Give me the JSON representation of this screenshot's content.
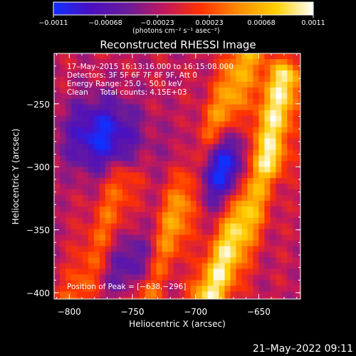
{
  "chart_data": {
    "type": "heatmap",
    "title": "Reconstructed RHESSI Image",
    "xlabel": "Heliocentric X (arcsec)",
    "ylabel": "Heliocentric Y (arcsec)",
    "xlim": [
      -812,
      -617
    ],
    "ylim": [
      -405,
      -210
    ],
    "xticks": [
      -800,
      -750,
      -700,
      -650
    ],
    "xtick_labels": [
      "−800",
      "−750",
      "−700",
      "−650"
    ],
    "yticks": [
      -400,
      -350,
      -300,
      -250
    ],
    "ytick_labels": [
      "−400",
      "−350",
      "−300",
      "−250"
    ],
    "colorbar": {
      "min": -0.0011,
      "max": 0.0011,
      "tick_labels": [
        "−0.0011",
        "−0.00068",
        "−0.00023",
        "0.00023",
        "0.00068",
        "0.0011"
      ],
      "unit_label": "(photons cm⁻² s⁻¹ asec⁻²)",
      "colors": [
        "#1030ff",
        "#4b0fc0",
        "#6a1b9a",
        "#c2185b",
        "#ff3300",
        "#ff8c00",
        "#ffd000",
        "#ffffff"
      ]
    },
    "annotations": [
      "17–May–2015 16:13:16.000 to 16:15:08.000",
      "Detectors: 3F 5F 6F 7F 8F 9F, Att 0",
      "Energy Range: 25.0 – 50.0 keV",
      "Clean     Total counts: 4.15E+03"
    ],
    "peak_label": "Position of Peak = [−638,−296]",
    "peak": [
      -638,
      -296
    ],
    "structure": {
      "ridges": [
        {
          "path_x": [
            -740,
            -725,
            -715,
            -705,
            -690,
            -675,
            -660
          ],
          "path_y": [
            -405,
            -370,
            -340,
            -310,
            -280,
            -250,
            -210
          ],
          "peak": 0.0008
        },
        {
          "path_x": [
            -690,
            -675,
            -662,
            -650,
            -640,
            -630
          ],
          "path_y": [
            -405,
            -370,
            -340,
            -300,
            -270,
            -230
          ],
          "peak": 0.0011
        },
        {
          "path_x": [
            -795,
            -780,
            -768,
            -758
          ],
          "path_y": [
            -405,
            -370,
            -340,
            -310
          ],
          "peak": 0.0005
        }
      ],
      "troughs": [
        {
          "center": [
            -775,
            -275
          ],
          "value": -0.0009
        },
        {
          "center": [
            -680,
            -300
          ],
          "value": -0.0011
        },
        {
          "center": [
            -745,
            -380
          ],
          "value": -0.0006
        }
      ]
    }
  },
  "footer": {
    "date": "21–May–2022 09:11"
  }
}
